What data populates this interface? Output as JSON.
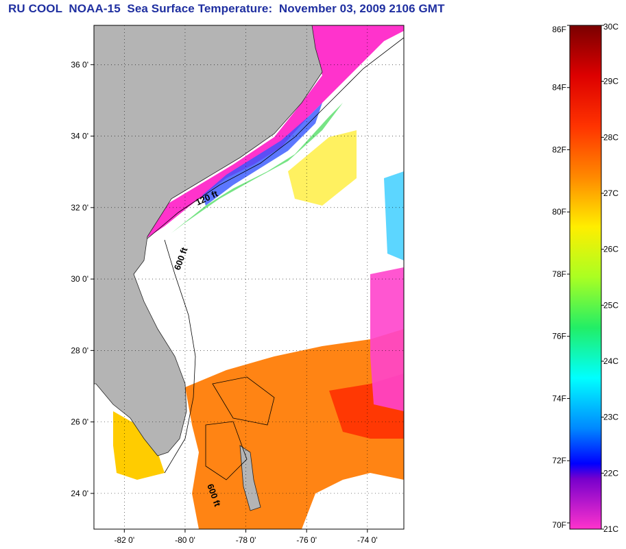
{
  "title": "RU COOL  NOAA-15  Sea Surface Temperature:  November 03, 2009 2106 GMT",
  "map": {
    "lon_range": [
      -83.0,
      -72.8
    ],
    "lat_range": [
      23.0,
      37.1
    ],
    "lat_ticks": [
      "36 0'",
      "34 0'",
      "32 0'",
      "30 0'",
      "28 0'",
      "26 0'",
      "24 0'"
    ],
    "lat_values": [
      36,
      34,
      32,
      30,
      28,
      26,
      24
    ],
    "lon_ticks": [
      "-82 0'",
      "-80 0'",
      "-78 0'",
      "-76 0'",
      "-74 0'"
    ],
    "lon_values": [
      -82,
      -80,
      -78,
      -76,
      -74
    ],
    "contour_labels": [
      "120 ft",
      "600 ft",
      "600 ft"
    ],
    "colors": {
      "land": "#b4b4b4",
      "no_data": "#ffffff",
      "cold": "#ff33cc",
      "warm": "#ff7a00"
    }
  },
  "colorbar": {
    "fahrenheit": [
      "86F",
      "84F",
      "82F",
      "80F",
      "78F",
      "76F",
      "74F",
      "72F",
      "70F"
    ],
    "celsius": [
      "30C",
      "29C",
      "28C",
      "27C",
      "26C",
      "25C",
      "24C",
      "23C",
      "22C",
      "21C"
    ],
    "stops": [
      "#7a0000",
      "#cc0000",
      "#ff2a00",
      "#ff7a00",
      "#ffcc00",
      "#ffff00",
      "#99ff33",
      "#33ee66",
      "#00ffff",
      "#0099ff",
      "#0000ff",
      "#7700cc",
      "#ff33cc"
    ]
  }
}
